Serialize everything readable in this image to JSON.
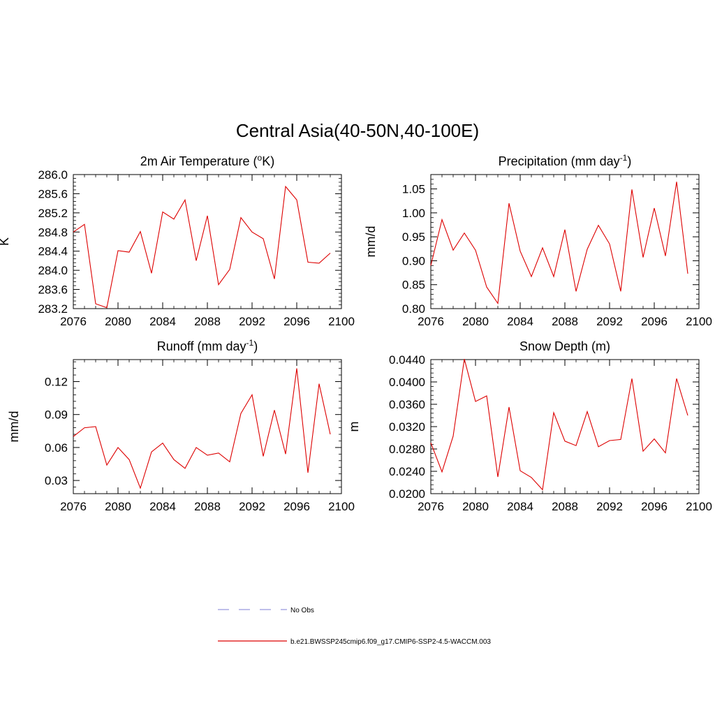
{
  "figure_title": "Central Asia(40-50N,40-100E)",
  "legend": {
    "entries": [
      {
        "label": "No Obs",
        "color": "#9999dd",
        "dash": true
      },
      {
        "label": "b.e21.BWSSP245cmip6.f09_g17.CMIP6-SSP2-4.5-WACCM.003",
        "color": "#dd0000",
        "dash": false
      }
    ]
  },
  "chart_data": [
    {
      "type": "line",
      "title_main": "2m Air Temperature (",
      "title_sup": "o",
      "title_end": "K)",
      "ylabel": "K",
      "xlim": [
        2076,
        2100
      ],
      "ylim": [
        283.2,
        286.0
      ],
      "xticks": [
        2076,
        2080,
        2084,
        2088,
        2092,
        2096,
        2100
      ],
      "xtick_labels": [
        "2076",
        "2080",
        "2084",
        "2088",
        "2092",
        "2096",
        "2100"
      ],
      "yticks": [
        283.2,
        283.6,
        284.0,
        284.4,
        284.8,
        285.2,
        285.6,
        286.0
      ],
      "ytick_labels": [
        "283.2",
        "283.6",
        "284.0",
        "284.4",
        "284.8",
        "285.2",
        "285.6",
        "286.0"
      ],
      "color": "#dd0000",
      "x": [
        2076,
        2077,
        2078,
        2079,
        2080,
        2081,
        2082,
        2083,
        2084,
        2085,
        2086,
        2087,
        2088,
        2089,
        2090,
        2091,
        2092,
        2093,
        2094,
        2095,
        2096,
        2097,
        2098,
        2099
      ],
      "y": [
        284.8,
        284.96,
        283.3,
        283.22,
        284.41,
        284.38,
        284.81,
        283.94,
        285.22,
        285.07,
        285.47,
        284.2,
        285.14,
        283.7,
        284.02,
        285.1,
        284.8,
        284.66,
        283.82,
        285.75,
        285.47,
        284.17,
        284.15,
        284.36
      ]
    },
    {
      "type": "line",
      "title_main": "Precipitation (mm day",
      "title_sup": "-1",
      "title_end": ")",
      "ylabel": "mm/d",
      "xlim": [
        2076,
        2100
      ],
      "ylim": [
        0.8,
        1.08
      ],
      "xticks": [
        2076,
        2080,
        2084,
        2088,
        2092,
        2096,
        2100
      ],
      "xtick_labels": [
        "2076",
        "2080",
        "2084",
        "2088",
        "2092",
        "2096",
        "2100"
      ],
      "yticks": [
        0.8,
        0.85,
        0.9,
        0.95,
        1.0,
        1.05
      ],
      "ytick_labels": [
        "0.80",
        "0.85",
        "0.90",
        "0.95",
        "1.00",
        "1.05"
      ],
      "color": "#dd0000",
      "x": [
        2076,
        2077,
        2078,
        2079,
        2080,
        2081,
        2082,
        2083,
        2084,
        2085,
        2086,
        2087,
        2088,
        2089,
        2090,
        2091,
        2092,
        2093,
        2094,
        2095,
        2096,
        2097,
        2098,
        2099
      ],
      "y": [
        0.89,
        0.986,
        0.922,
        0.958,
        0.922,
        0.845,
        0.811,
        1.02,
        0.92,
        0.867,
        0.927,
        0.867,
        0.965,
        0.836,
        0.924,
        0.974,
        0.935,
        0.836,
        1.049,
        0.907,
        1.01,
        0.91,
        1.065,
        0.873
      ]
    },
    {
      "type": "line",
      "title_main": "Runoff (mm day",
      "title_sup": "-1",
      "title_end": ")",
      "ylabel": "mm/d",
      "xlim": [
        2076,
        2100
      ],
      "ylim": [
        0.018,
        0.14
      ],
      "xticks": [
        2076,
        2080,
        2084,
        2088,
        2092,
        2096,
        2100
      ],
      "xtick_labels": [
        "2076",
        "2080",
        "2084",
        "2088",
        "2092",
        "2096",
        "2100"
      ],
      "yticks": [
        0.03,
        0.06,
        0.09,
        0.12
      ],
      "ytick_labels": [
        "0.03",
        "0.06",
        "0.09",
        "0.12"
      ],
      "color": "#dd0000",
      "x": [
        2076,
        2077,
        2078,
        2079,
        2080,
        2081,
        2082,
        2083,
        2084,
        2085,
        2086,
        2087,
        2088,
        2089,
        2090,
        2091,
        2092,
        2093,
        2094,
        2095,
        2096,
        2097,
        2098,
        2099
      ],
      "y": [
        0.07,
        0.078,
        0.079,
        0.044,
        0.06,
        0.049,
        0.023,
        0.056,
        0.064,
        0.049,
        0.041,
        0.06,
        0.053,
        0.055,
        0.047,
        0.091,
        0.108,
        0.052,
        0.094,
        0.054,
        0.132,
        0.037,
        0.118,
        0.072
      ]
    },
    {
      "type": "line",
      "title_main": "Snow Depth (m)",
      "title_sup": "",
      "title_end": "",
      "ylabel": "m",
      "xlim": [
        2076,
        2100
      ],
      "ylim": [
        0.02,
        0.044
      ],
      "xticks": [
        2076,
        2080,
        2084,
        2088,
        2092,
        2096,
        2100
      ],
      "xtick_labels": [
        "2076",
        "2080",
        "2084",
        "2088",
        "2092",
        "2096",
        "2100"
      ],
      "yticks": [
        0.02,
        0.024,
        0.028,
        0.032,
        0.036,
        0.04,
        0.044
      ],
      "ytick_labels": [
        "0.0200",
        "0.0240",
        "0.0280",
        "0.0320",
        "0.0360",
        "0.0400",
        "0.0440"
      ],
      "color": "#dd0000",
      "x": [
        2076,
        2077,
        2078,
        2079,
        2080,
        2081,
        2082,
        2083,
        2084,
        2085,
        2086,
        2087,
        2088,
        2089,
        2090,
        2091,
        2092,
        2093,
        2094,
        2095,
        2096,
        2097,
        2098,
        2099
      ],
      "y": [
        0.0291,
        0.0239,
        0.0303,
        0.0441,
        0.0365,
        0.0375,
        0.023,
        0.0355,
        0.0241,
        0.0229,
        0.0207,
        0.0345,
        0.0294,
        0.0286,
        0.0347,
        0.0284,
        0.0295,
        0.0297,
        0.0406,
        0.0276,
        0.0298,
        0.0273,
        0.0406,
        0.034
      ]
    }
  ]
}
